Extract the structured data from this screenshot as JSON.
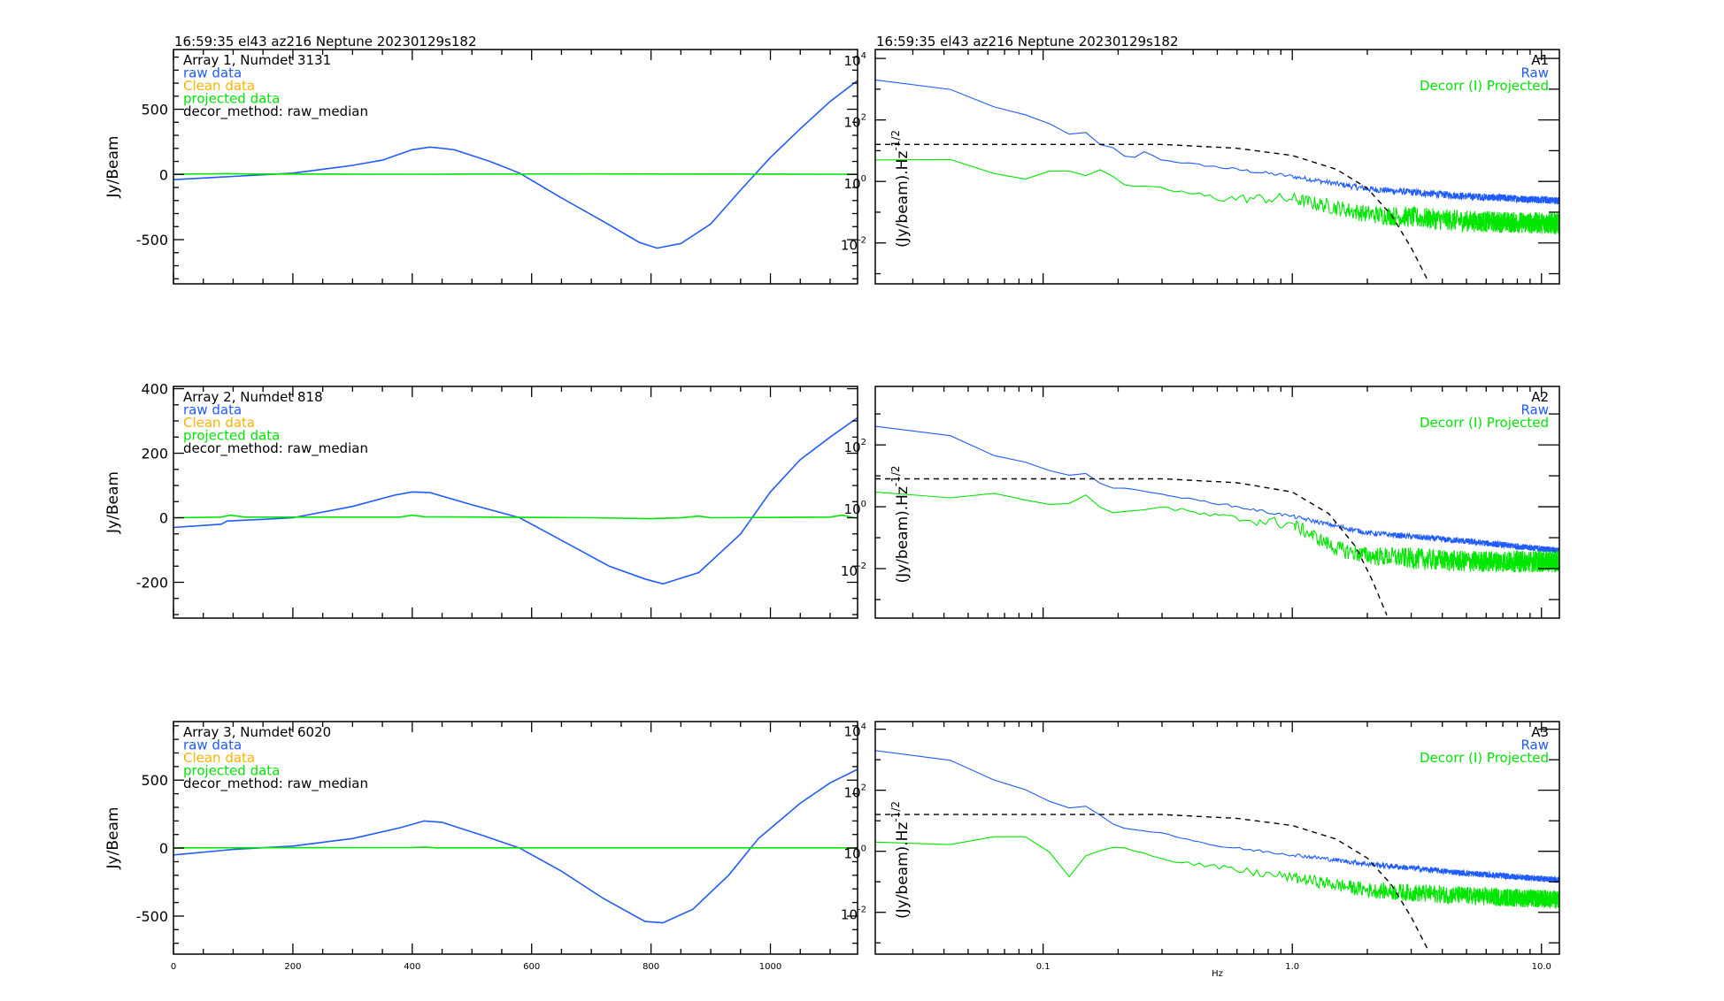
{
  "colors": {
    "raw": "#1f5bff",
    "clean": "#ffb000",
    "projected": "#00e600",
    "axis": "#000000",
    "model": "#000000"
  },
  "chart_data": [
    {
      "type": "line",
      "panel": "timestream",
      "row": 0,
      "title": "16:59:35 el43 az216 Neptune 20230129s182",
      "ylabel": "Jy/Beam",
      "xlabel": "",
      "xlim": [
        0,
        1146
      ],
      "ylim": [
        -839,
        958
      ],
      "yticks": [
        -500,
        0,
        500
      ],
      "yminor": 100,
      "xticks": [
        0,
        200,
        400,
        600,
        800,
        1000
      ],
      "xminor": 50,
      "show_xlabels": false,
      "legend": [
        "Array 1, Numdet 3131",
        "raw data",
        "Clean data",
        "projected data",
        "decor_method: raw_median"
      ],
      "series": [
        {
          "name": "raw data",
          "points": [
            [
              0,
              -40
            ],
            [
              100,
              -15
            ],
            [
              200,
              10
            ],
            [
              300,
              70
            ],
            [
              350,
              110
            ],
            [
              400,
              190
            ],
            [
              430,
              210
            ],
            [
              470,
              190
            ],
            [
              530,
              100
            ],
            [
              580,
              10
            ],
            [
              650,
              -180
            ],
            [
              720,
              -360
            ],
            [
              780,
              -520
            ],
            [
              810,
              -565
            ],
            [
              850,
              -530
            ],
            [
              900,
              -380
            ],
            [
              950,
              -120
            ],
            [
              1000,
              130
            ],
            [
              1050,
              350
            ],
            [
              1100,
              560
            ],
            [
              1146,
              720
            ]
          ]
        },
        {
          "name": "projected data",
          "points": [
            [
              0,
              2
            ],
            [
              90,
              6
            ],
            [
              140,
              3
            ],
            [
              400,
              2
            ],
            [
              700,
              4
            ],
            [
              1146,
              2
            ]
          ]
        }
      ]
    },
    {
      "type": "line",
      "panel": "spectrum",
      "row": 0,
      "title": "16:59:35 el43 az216 Neptune 20230129s182",
      "ylabel": "(Jy/beam).Hz",
      "ylabel_sup": "-1/2",
      "xlabel": "Hz",
      "xscale": "log",
      "yscale": "log",
      "xlim": [
        0.0212,
        11.8
      ],
      "ylim_log10": [
        -3.33,
        4.29
      ],
      "yticks_exp": [
        -2,
        0,
        2,
        4
      ],
      "xticks": [
        "0.1",
        "1.0",
        "10.0"
      ],
      "show_xlabels": false,
      "legend": [
        "A1",
        "Raw",
        "Decorr (I) Projected"
      ],
      "series": [
        {
          "name": "Raw",
          "noise_dex": 0.12,
          "points": [
            [
              0.0212,
              2000
            ],
            [
              0.04,
              1200
            ],
            [
              0.06,
              300
            ],
            [
              0.09,
              130
            ],
            [
              0.12,
              50
            ],
            [
              0.13,
              30
            ],
            [
              0.15,
              40
            ],
            [
              0.18,
              10
            ],
            [
              0.2,
              15
            ],
            [
              0.22,
              4
            ],
            [
              0.25,
              10
            ],
            [
              0.3,
              5
            ],
            [
              0.5,
              3
            ],
            [
              1,
              1.5
            ],
            [
              2,
              0.6
            ],
            [
              5,
              0.35
            ],
            [
              11.8,
              0.25
            ]
          ]
        },
        {
          "name": "Decorr (I) Projected",
          "noise_dex": 0.35,
          "points": [
            [
              0.0212,
              5
            ],
            [
              0.04,
              6
            ],
            [
              0.08,
              1
            ],
            [
              0.1,
              2
            ],
            [
              0.12,
              2.5
            ],
            [
              0.15,
              1.5
            ],
            [
              0.18,
              3
            ],
            [
              0.2,
              0.8
            ],
            [
              0.3,
              0.6
            ],
            [
              0.5,
              0.3
            ],
            [
              1,
              0.3
            ],
            [
              2,
              0.1
            ],
            [
              5,
              0.06
            ],
            [
              11.8,
              0.05
            ]
          ]
        },
        {
          "name": "model",
          "dashed": true,
          "points": [
            [
              0.0212,
              16
            ],
            [
              0.3,
              16
            ],
            [
              0.6,
              12
            ],
            [
              1,
              7
            ],
            [
              1.5,
              2.5
            ],
            [
              2,
              0.6
            ],
            [
              2.5,
              0.08
            ],
            [
              3,
              0.007
            ],
            [
              3.5,
              0.0006
            ]
          ]
        }
      ]
    },
    {
      "type": "line",
      "panel": "timestream",
      "row": 1,
      "title": "",
      "ylabel": "Jy/Beam",
      "xlabel": "",
      "xlim": [
        0,
        1146
      ],
      "ylim": [
        -311,
        407
      ],
      "yticks": [
        -200,
        0,
        200,
        400
      ],
      "yminor": 50,
      "xticks": [
        0,
        200,
        400,
        600,
        800,
        1000
      ],
      "xminor": 50,
      "show_xlabels": false,
      "legend": [
        "Array 2, Numdet 818",
        "raw data",
        "Clean data",
        "projected data",
        "decor_method: raw_median"
      ],
      "series": [
        {
          "name": "raw data",
          "points": [
            [
              0,
              -30
            ],
            [
              80,
              -20
            ],
            [
              90,
              -10
            ],
            [
              150,
              -5
            ],
            [
              200,
              0
            ],
            [
              300,
              35
            ],
            [
              370,
              70
            ],
            [
              400,
              80
            ],
            [
              430,
              78
            ],
            [
              500,
              40
            ],
            [
              580,
              0
            ],
            [
              660,
              -80
            ],
            [
              730,
              -150
            ],
            [
              790,
              -190
            ],
            [
              820,
              -205
            ],
            [
              880,
              -170
            ],
            [
              950,
              -50
            ],
            [
              1000,
              80
            ],
            [
              1050,
              180
            ],
            [
              1100,
              250
            ],
            [
              1146,
              310
            ]
          ]
        },
        {
          "name": "projected data",
          "points": [
            [
              0,
              0
            ],
            [
              80,
              2
            ],
            [
              95,
              8
            ],
            [
              120,
              2
            ],
            [
              380,
              2
            ],
            [
              400,
              8
            ],
            [
              420,
              3
            ],
            [
              700,
              0
            ],
            [
              800,
              -3
            ],
            [
              850,
              0
            ],
            [
              880,
              5
            ],
            [
              900,
              0
            ],
            [
              1100,
              2
            ],
            [
              1120,
              8
            ],
            [
              1140,
              0
            ],
            [
              1146,
              0
            ]
          ]
        }
      ]
    },
    {
      "type": "line",
      "panel": "spectrum",
      "row": 1,
      "title": "",
      "ylabel": "(Jy/beam).Hz",
      "ylabel_sup": "-1/2",
      "xlabel": "Hz",
      "xscale": "log",
      "yscale": "log",
      "xlim": [
        0.0212,
        11.8
      ],
      "ylim_log10": [
        -3.6,
        3.89
      ],
      "yticks_exp": [
        -2,
        0,
        2
      ],
      "xticks": [
        "0.1",
        "1.0",
        "10.0"
      ],
      "show_xlabels": false,
      "legend": [
        "A2",
        "Raw",
        "Decorr (I) Projected"
      ],
      "series": [
        {
          "name": "Raw",
          "noise_dex": 0.1,
          "points": [
            [
              0.0212,
              400
            ],
            [
              0.04,
              250
            ],
            [
              0.06,
              50
            ],
            [
              0.09,
              25
            ],
            [
              0.12,
              10
            ],
            [
              0.15,
              12
            ],
            [
              0.18,
              4
            ],
            [
              0.22,
              4
            ],
            [
              0.3,
              2.5
            ],
            [
              0.5,
              1.3
            ],
            [
              1,
              0.5
            ],
            [
              2,
              0.15
            ],
            [
              5,
              0.08
            ],
            [
              11.8,
              0.04
            ]
          ]
        },
        {
          "name": "Decorr (I) Projected",
          "noise_dex": 0.35,
          "points": [
            [
              0.0212,
              3
            ],
            [
              0.04,
              1.8
            ],
            [
              0.06,
              3
            ],
            [
              0.09,
              1.5
            ],
            [
              0.12,
              1
            ],
            [
              0.15,
              2.5
            ],
            [
              0.18,
              0.6
            ],
            [
              0.3,
              1
            ],
            [
              0.5,
              0.5
            ],
            [
              1,
              0.3
            ],
            [
              1.5,
              0.05
            ],
            [
              2,
              0.03
            ],
            [
              5,
              0.02
            ],
            [
              11.8,
              0.02
            ]
          ]
        },
        {
          "name": "model",
          "dashed": true,
          "points": [
            [
              0.0212,
              8
            ],
            [
              0.3,
              8
            ],
            [
              0.6,
              6
            ],
            [
              1,
              3
            ],
            [
              1.4,
              0.6
            ],
            [
              1.8,
              0.05
            ],
            [
              2.1,
              0.004
            ],
            [
              2.4,
              0.0003
            ]
          ]
        }
      ]
    },
    {
      "type": "line",
      "panel": "timestream",
      "row": 2,
      "title": "",
      "ylabel": "Jy/Beam",
      "xlabel": "",
      "xlim": [
        0,
        1146
      ],
      "ylim": [
        -780,
        931
      ],
      "yticks": [
        -500,
        0,
        500
      ],
      "yminor": 100,
      "xticks": [
        0,
        200,
        400,
        600,
        800,
        1000
      ],
      "xminor": 50,
      "xticklabels": [
        "0",
        "200",
        "400",
        "600",
        "800",
        "1000"
      ],
      "show_xlabels": true,
      "legend": [
        "Array 3, Numdet 6020",
        "raw data",
        "Clean data",
        "projected data",
        "decor_method: raw_median"
      ],
      "series": [
        {
          "name": "raw data",
          "points": [
            [
              0,
              -50
            ],
            [
              100,
              -10
            ],
            [
              200,
              15
            ],
            [
              300,
              70
            ],
            [
              380,
              150
            ],
            [
              420,
              200
            ],
            [
              450,
              190
            ],
            [
              520,
              90
            ],
            [
              580,
              0
            ],
            [
              650,
              -170
            ],
            [
              720,
              -370
            ],
            [
              790,
              -540
            ],
            [
              820,
              -550
            ],
            [
              870,
              -450
            ],
            [
              930,
              -200
            ],
            [
              980,
              70
            ],
            [
              1050,
              330
            ],
            [
              1100,
              480
            ],
            [
              1146,
              580
            ]
          ]
        },
        {
          "name": "projected data",
          "points": [
            [
              0,
              2
            ],
            [
              400,
              4
            ],
            [
              420,
              8
            ],
            [
              440,
              2
            ],
            [
              1146,
              2
            ]
          ]
        }
      ]
    },
    {
      "type": "line",
      "panel": "spectrum",
      "row": 2,
      "title": "",
      "ylabel": "(Jy/beam).Hz",
      "ylabel_sup": "-1/2",
      "xlabel": "Hz",
      "xscale": "log",
      "yscale": "log",
      "xlim": [
        0.0212,
        11.8
      ],
      "ylim_log10": [
        -3.37,
        4.25
      ],
      "yticks_exp": [
        -2,
        0,
        2,
        4
      ],
      "xticks": [
        "0.1",
        "1.0",
        "10.0"
      ],
      "show_xlabels": true,
      "legend": [
        "A3",
        "Raw",
        "Decorr (I) Projected"
      ],
      "series": [
        {
          "name": "Raw",
          "noise_dex": 0.1,
          "points": [
            [
              0.0212,
              2000
            ],
            [
              0.04,
              1200
            ],
            [
              0.06,
              250
            ],
            [
              0.09,
              90
            ],
            [
              0.12,
              25
            ],
            [
              0.15,
              30
            ],
            [
              0.2,
              6
            ],
            [
              0.3,
              4
            ],
            [
              0.5,
              1.5
            ],
            [
              1,
              0.8
            ],
            [
              2,
              0.4
            ],
            [
              5,
              0.2
            ],
            [
              11.8,
              0.12
            ]
          ]
        },
        {
          "name": "Decorr (I) Projected",
          "noise_dex": 0.3,
          "points": [
            [
              0.0212,
              2
            ],
            [
              0.04,
              1.5
            ],
            [
              0.06,
              3
            ],
            [
              0.1,
              3
            ],
            [
              0.12,
              0.08
            ],
            [
              0.15,
              0.8
            ],
            [
              0.2,
              1.5
            ],
            [
              0.3,
              0.6
            ],
            [
              0.5,
              0.3
            ],
            [
              1,
              0.15
            ],
            [
              2,
              0.06
            ],
            [
              5,
              0.04
            ],
            [
              11.8,
              0.03
            ]
          ]
        },
        {
          "name": "model",
          "dashed": true,
          "points": [
            [
              0.0212,
              16
            ],
            [
              0.3,
              16
            ],
            [
              0.6,
              12
            ],
            [
              1,
              7
            ],
            [
              1.5,
              2.5
            ],
            [
              2,
              0.6
            ],
            [
              2.5,
              0.08
            ],
            [
              3,
              0.007
            ],
            [
              3.5,
              0.0006
            ]
          ]
        }
      ]
    }
  ]
}
